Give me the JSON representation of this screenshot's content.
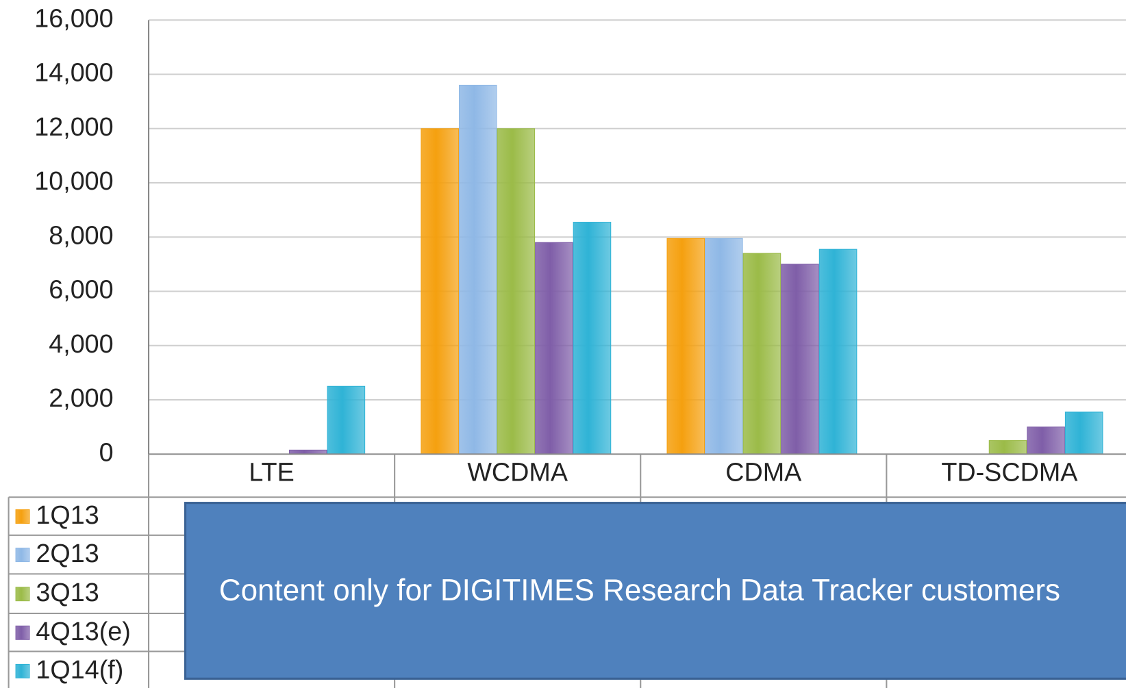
{
  "chart_data": {
    "type": "bar",
    "categories": [
      "LTE",
      "WCDMA",
      "CDMA",
      "TD-SCDMA"
    ],
    "series": [
      {
        "name": "1Q13",
        "color": "#f5a00f",
        "values": [
          0,
          12000,
          7950,
          0
        ]
      },
      {
        "name": "2Q13",
        "color": "#8fb8e6",
        "values": [
          0,
          13600,
          7950,
          0
        ]
      },
      {
        "name": "3Q13",
        "color": "#9bbb48",
        "values": [
          0,
          12000,
          7400,
          500
        ]
      },
      {
        "name": "4Q13(e)",
        "color": "#7f5ea8",
        "values": [
          150,
          7800,
          7000,
          1000
        ]
      },
      {
        "name": "1Q14(f)",
        "color": "#2fb3d6",
        "values": [
          2500,
          8550,
          7550,
          1550
        ]
      }
    ],
    "ylim": [
      0,
      16000
    ],
    "yticks": [
      {
        "value": 0,
        "label": "0"
      },
      {
        "value": 2000,
        "label": "2,000"
      },
      {
        "value": 4000,
        "label": "4,000"
      },
      {
        "value": 6000,
        "label": "6,000"
      },
      {
        "value": 8000,
        "label": "8,000"
      },
      {
        "value": 10000,
        "label": "10,000"
      },
      {
        "value": 12000,
        "label": "12,000"
      },
      {
        "value": 14000,
        "label": "14,000"
      },
      {
        "value": 16000,
        "label": "16,000"
      }
    ],
    "grid": true,
    "overlay_text": "Content only for DIGITIMES Research Data Tracker customers"
  }
}
